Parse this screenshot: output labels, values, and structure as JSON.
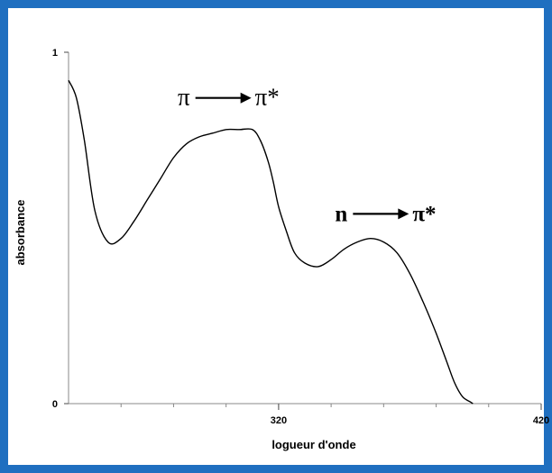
{
  "chart_data": {
    "type": "line",
    "title": "",
    "xlabel": "logueur d'onde",
    "ylabel": "absorbance",
    "xlim": [
      240,
      420
    ],
    "ylim": [
      0,
      1
    ],
    "x_ticks": [
      320,
      420
    ],
    "x_tick_labels": [
      "320",
      "420"
    ],
    "y_ticks": [
      0,
      1
    ],
    "y_tick_labels": [
      "0",
      "1"
    ],
    "grid": false,
    "series": [
      {
        "x": [
          240,
          243,
          246,
          250,
          255,
          260,
          265,
          270,
          275,
          280,
          285,
          290,
          295,
          300,
          305,
          310,
          313,
          316,
          318,
          320,
          323,
          326,
          330,
          335,
          340,
          345,
          350,
          355,
          360,
          365,
          370,
          375,
          380,
          384,
          387,
          390,
          393,
          394
        ],
        "y": [
          0.92,
          0.87,
          0.75,
          0.55,
          0.46,
          0.47,
          0.52,
          0.58,
          0.64,
          0.7,
          0.74,
          0.76,
          0.77,
          0.78,
          0.78,
          0.78,
          0.75,
          0.69,
          0.63,
          0.56,
          0.49,
          0.43,
          0.4,
          0.39,
          0.41,
          0.44,
          0.46,
          0.47,
          0.46,
          0.43,
          0.37,
          0.29,
          0.2,
          0.12,
          0.06,
          0.02,
          0.005,
          0
        ]
      }
    ],
    "annotations": [
      {
        "left": "π",
        "right": "π*",
        "x": 300,
        "y": 0.87
      },
      {
        "left": "n",
        "right": "π*",
        "x": 360,
        "y": 0.54
      }
    ]
  }
}
